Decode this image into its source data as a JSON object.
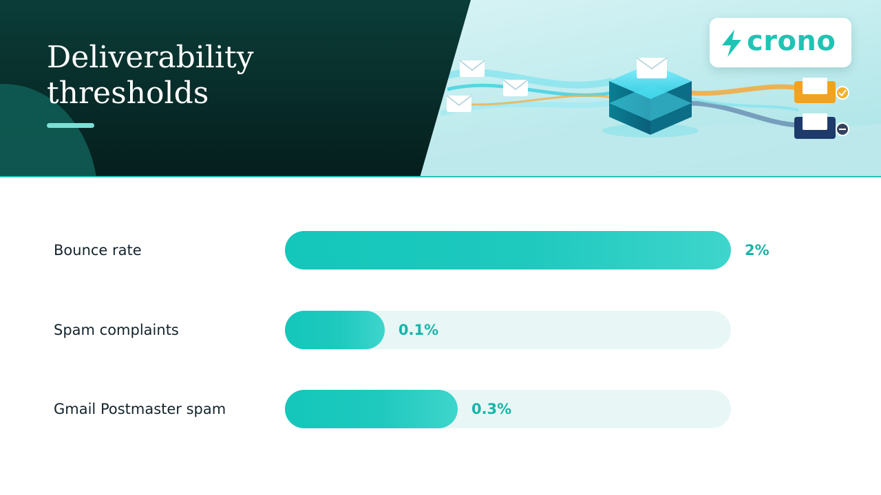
{
  "header": {
    "title_lines": [
      "Deliverability",
      "thresholds"
    ],
    "logo_text": "crono"
  },
  "colors": {
    "header_dark": "#0b3b36",
    "accent": "#22c3b8",
    "bar_fill": "#1fc9be",
    "bar_track": "#e8f7f6",
    "value_text": "#17b4aa",
    "label_text": "#13232b"
  },
  "icons": [
    "lightning-bolt-icon",
    "envelope-icon",
    "check-badge-icon",
    "minus-badge-icon"
  ],
  "chart_data": {
    "type": "bar",
    "orientation": "horizontal",
    "title": "Deliverability thresholds",
    "categories": [
      "Bounce rate",
      "Spam complaints",
      "Gmail Postmaster spam"
    ],
    "values": [
      2,
      0.1,
      0.3
    ],
    "value_labels": [
      "2%",
      "0.1%",
      "0.3%"
    ],
    "unit": "%",
    "xlim": [
      0,
      2
    ],
    "grid": false
  }
}
